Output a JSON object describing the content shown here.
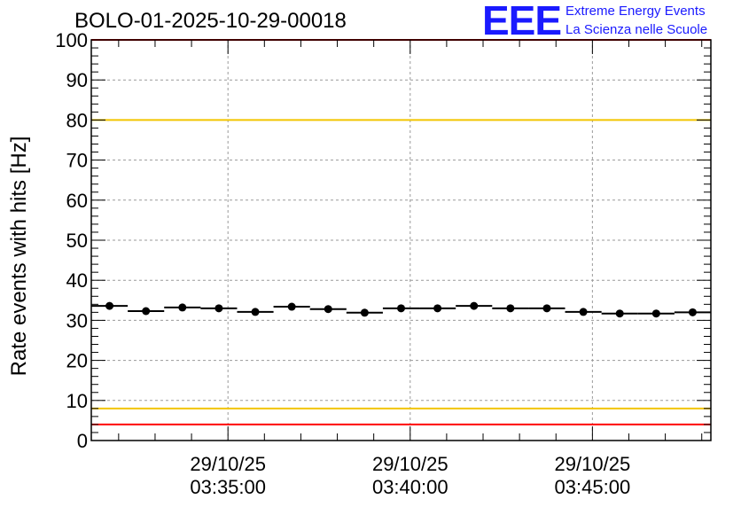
{
  "header": {
    "title": "BOLO-01-2025-10-29-00018",
    "logo_text": "EEE",
    "logo_line1": "Extreme Energy Events",
    "logo_line2": "La Scienza nelle Scuole",
    "logo_color": "#1a1aff"
  },
  "chart_data": {
    "type": "scatter",
    "title": "BOLO-01-2025-10-29-00018",
    "xlabel": "",
    "ylabel": "Rate events with hits [Hz]",
    "ylim": [
      0,
      100
    ],
    "y_ticks": [
      "0",
      "10",
      "20",
      "30",
      "40",
      "50",
      "60",
      "70",
      "80",
      "90",
      "100"
    ],
    "xlim": [
      "2025-10-29 03:31:15",
      "2025-10-29 03:48:15"
    ],
    "x_ticks": [
      {
        "date": "29/10/25",
        "time": "03:35:00",
        "x": "2025-10-29 03:35:00"
      },
      {
        "date": "29/10/25",
        "time": "03:40:00",
        "x": "2025-10-29 03:40:00"
      },
      {
        "date": "29/10/25",
        "time": "03:45:00",
        "x": "2025-10-29 03:45:00"
      }
    ],
    "grid": true,
    "bin_width_seconds": 60,
    "series": [
      {
        "x": [
          "03:31:45",
          "03:32:45",
          "03:33:45",
          "03:34:45",
          "03:35:45",
          "03:36:45",
          "03:37:45",
          "03:38:45",
          "03:39:45",
          "03:40:45",
          "03:41:45",
          "03:42:45",
          "03:43:45",
          "03:44:45",
          "03:45:45",
          "03:46:45",
          "03:47:45"
        ],
        "y": [
          33.6,
          32.3,
          33.2,
          33.0,
          32.1,
          33.4,
          32.8,
          31.9,
          33.0,
          33.0,
          33.6,
          33.0,
          33.0,
          32.1,
          31.7,
          31.7,
          32.0
        ],
        "marker_color": "#000000"
      }
    ],
    "reference_lines": [
      {
        "y": 100,
        "color": "#ff0000"
      },
      {
        "y": 80,
        "color": "#f2c500"
      },
      {
        "y": 8,
        "color": "#f2c500"
      },
      {
        "y": 4,
        "color": "#ff0000"
      }
    ]
  }
}
